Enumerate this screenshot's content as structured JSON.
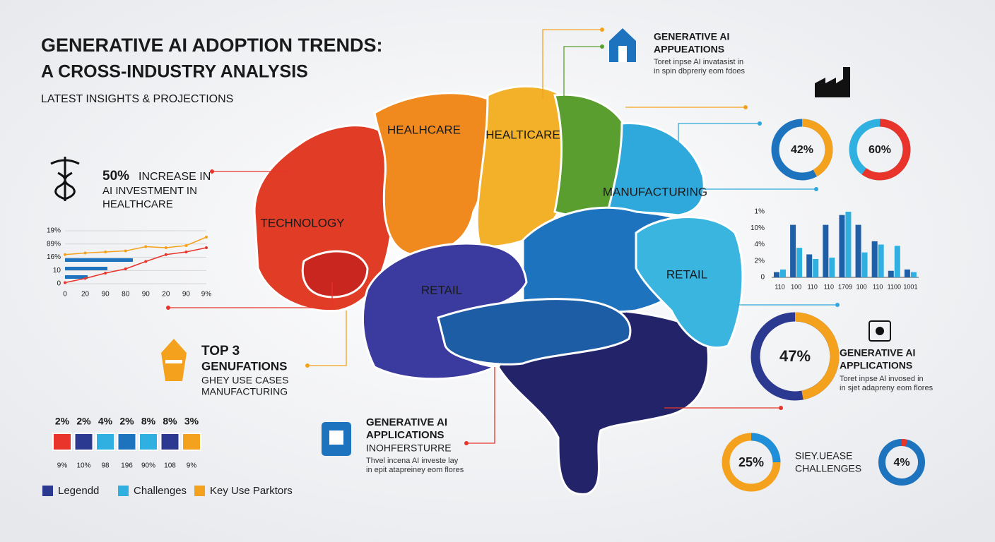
{
  "header": {
    "title": "GENERATIVE AI ADOPTION TRENDS:",
    "subtitle": "A CROSS-INDUSTRY ANALYSIS",
    "tagline": "LATEST INSIGHTS & PROJECTIONS"
  },
  "brain_labels": [
    "TECHNOLOGY",
    "HEALHCARE",
    "HEALTICARE",
    "MANUFACTURING",
    "RETAIL",
    "RETAIL"
  ],
  "healthcare_callout": {
    "highlight": "50%",
    "lines": [
      "INCREASE IN",
      "AI INVESTMENT IN",
      "HEALTHCARE"
    ]
  },
  "top3_callout": {
    "lines": [
      "TOP 3",
      "GENUFATIONS",
      "GHEY USE CASES",
      "MANUFACTURING"
    ]
  },
  "bottom_callout": {
    "lines": [
      "GENERATIVE AI",
      "APPLICATIONS",
      "INOHFERSTURRE",
      "Thvel incena AI investe lay",
      "in epit atapreiney eom flores"
    ]
  },
  "top_right_callout": {
    "lines": [
      "GENERATIVE AI",
      "APPUEATIONS",
      "Toret inpse AI invatasist in",
      "in spin dbpreriy eom fdoes"
    ]
  },
  "right_callout": {
    "lines": [
      "GENERATIVE AI",
      "APPLICATIONS",
      "Toret inpse Al invosed in",
      "in sjet adapreny eom flores"
    ]
  },
  "challenges_callout": {
    "lines": [
      "SIEY.UEASE",
      "CHALLENGES"
    ]
  },
  "donuts": [
    {
      "value": 42,
      "label": "42%",
      "color": "#f4a21d",
      "rest_color": "#1e73be"
    },
    {
      "value": 60,
      "label": "60%",
      "color": "#e8342a",
      "rest_color": "#2fb0e0"
    },
    {
      "value": 47,
      "label": "47%",
      "color": "#f4a21d",
      "rest_color": "#2b3990"
    },
    {
      "value": 25,
      "label": "25%",
      "color": "#1e8fd8",
      "rest_color": "#f4a21d"
    },
    {
      "value": 4,
      "label": "4%",
      "color": "#e8342a",
      "rest_color": "#1e73be"
    }
  ],
  "left_chart": {
    "ylim": [
      0,
      100
    ],
    "y_labels": [
      "19%",
      "89%",
      "16%",
      "10",
      "0"
    ],
    "x_labels": [
      "0",
      "20",
      "90",
      "80",
      "90",
      "20",
      "90",
      "9%"
    ],
    "series": [
      {
        "color": "#f4a21d",
        "values": [
          55,
          58,
          60,
          62,
          70,
          68,
          72,
          88
        ]
      },
      {
        "color": "#e8342a",
        "values": [
          2,
          10,
          20,
          28,
          42,
          55,
          60,
          68
        ]
      }
    ],
    "bars": {
      "color": "#1e73be",
      "values": [
        48,
        30,
        16
      ]
    }
  },
  "right_chart": {
    "ylim": [
      0,
      100
    ],
    "y_labels": [
      "1%",
      "10%",
      "4%",
      "2%",
      "0"
    ],
    "x_labels": [
      "110",
      "100",
      "110",
      "110",
      "1709",
      "100",
      "110",
      "1100",
      "1001"
    ],
    "series": [
      {
        "color": "#1e5fa8",
        "values": [
          8,
          80,
          35,
          80,
          95,
          80,
          55,
          10,
          12
        ]
      },
      {
        "color": "#2fb0e0",
        "values": [
          12,
          45,
          28,
          30,
          100,
          38,
          50,
          48,
          8
        ]
      }
    ]
  },
  "percent_row": [
    {
      "top": "2%",
      "bottom": "9%",
      "color": "#e8342a"
    },
    {
      "top": "2%",
      "bottom": "10%",
      "color": "#2b3990"
    },
    {
      "top": "4%",
      "bottom": "98",
      "color": "#2fb0e0"
    },
    {
      "top": "2%",
      "bottom": "196",
      "color": "#1e73be"
    },
    {
      "top": "8%",
      "bottom": "90%",
      "color": "#2fb0e0"
    },
    {
      "top": "8%",
      "bottom": "108",
      "color": "#2b3990"
    },
    {
      "top": "3%",
      "bottom": "9%",
      "color": "#f4a21d"
    }
  ],
  "legend": [
    {
      "label": "Legendd",
      "color": "#2b3990"
    },
    {
      "label": "Challenges",
      "color": "#2fb0e0"
    },
    {
      "label": "Key Use Parktors",
      "color": "#f4a21d"
    }
  ]
}
